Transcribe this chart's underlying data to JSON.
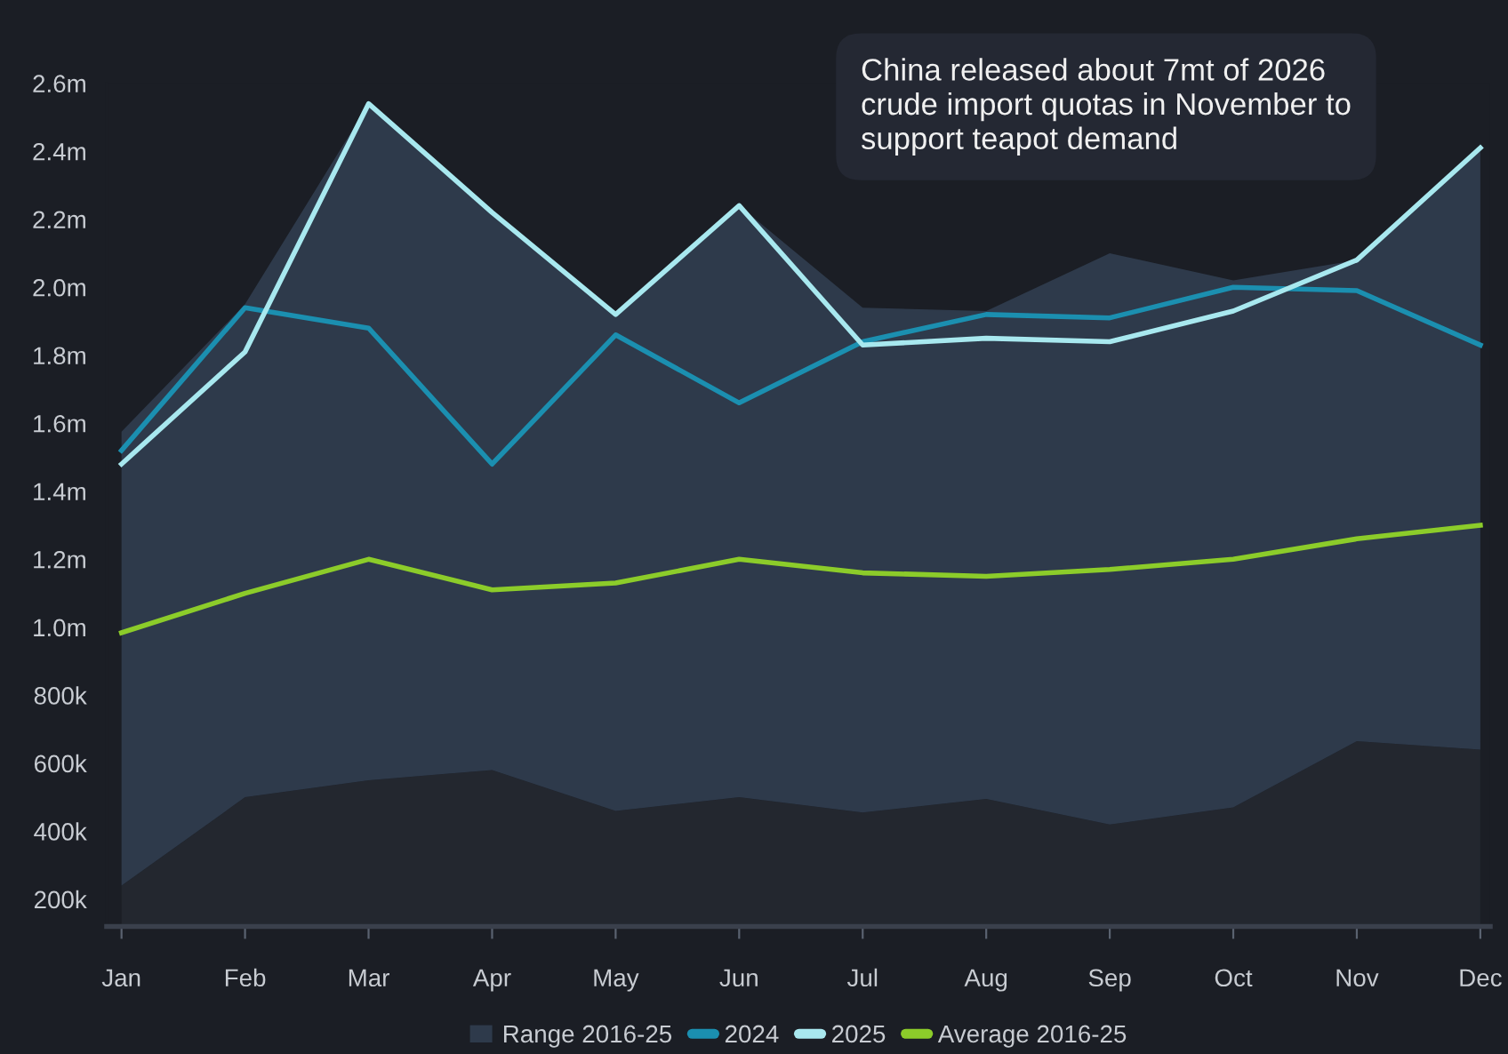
{
  "chart_data": {
    "type": "line",
    "categories": [
      "Jan",
      "Feb",
      "Mar",
      "Apr",
      "May",
      "Jun",
      "Jul",
      "Aug",
      "Sep",
      "Oct",
      "Nov",
      "Dec"
    ],
    "series": [
      {
        "type": "area",
        "color": "#23272f",
        "values": [
          240000,
          500000,
          550000,
          580000,
          460000,
          500000,
          455000,
          495000,
          420000,
          470000,
          665000,
          640000
        ]
      },
      {
        "name": "Range 2016-25",
        "type": "area",
        "color": "#2e3a4b",
        "values": [
          1335000,
          1450000,
          1990000,
          1640000,
          1460000,
          1740000,
          1485000,
          1435000,
          1680000,
          1550000,
          1415000,
          1770000
        ]
      },
      {
        "name": "2024",
        "color": "#1b8fb0",
        "values": [
          1520000,
          1940000,
          1880000,
          1480000,
          1860000,
          1660000,
          1840000,
          1920000,
          1910000,
          2000000,
          1990000,
          1830000
        ]
      },
      {
        "name": "2025",
        "color": "#a8e8ef",
        "values": [
          1480000,
          1810000,
          2540000,
          2220000,
          1920000,
          2240000,
          1830000,
          1850000,
          1840000,
          1930000,
          2080000,
          2410000
        ]
      },
      {
        "name": "Average 2016-25",
        "color": "#8ccc2a",
        "values": [
          984000,
          1100000,
          1200000,
          1110000,
          1130000,
          1200000,
          1160000,
          1150000,
          1170000,
          1200000,
          1260000,
          1300000
        ]
      }
    ],
    "ylim": [
      120000,
      2600000
    ],
    "yticks": [
      {
        "value": 200000,
        "label": "200k"
      },
      {
        "value": 400000,
        "label": "400k"
      },
      {
        "value": 600000,
        "label": "600k"
      },
      {
        "value": 800000,
        "label": "800k"
      },
      {
        "value": 1000000,
        "label": "1.0m"
      },
      {
        "value": 1200000,
        "label": "1.2m"
      },
      {
        "value": 1400000,
        "label": "1.4m"
      },
      {
        "value": 1600000,
        "label": "1.6m"
      },
      {
        "value": 1800000,
        "label": "1.8m"
      },
      {
        "value": 2000000,
        "label": "2.0m"
      },
      {
        "value": 2200000,
        "label": "2.2m"
      },
      {
        "value": 2400000,
        "label": "2.4m"
      },
      {
        "value": 2600000,
        "label": "2.6m"
      }
    ],
    "annotations": [
      "China released about 7mt of 2026 crude import quotas in November to support teapot demand"
    ],
    "stacked": true,
    "legend": "bottom",
    "grid": false,
    "marker": "none",
    "line_style": "solid"
  }
}
